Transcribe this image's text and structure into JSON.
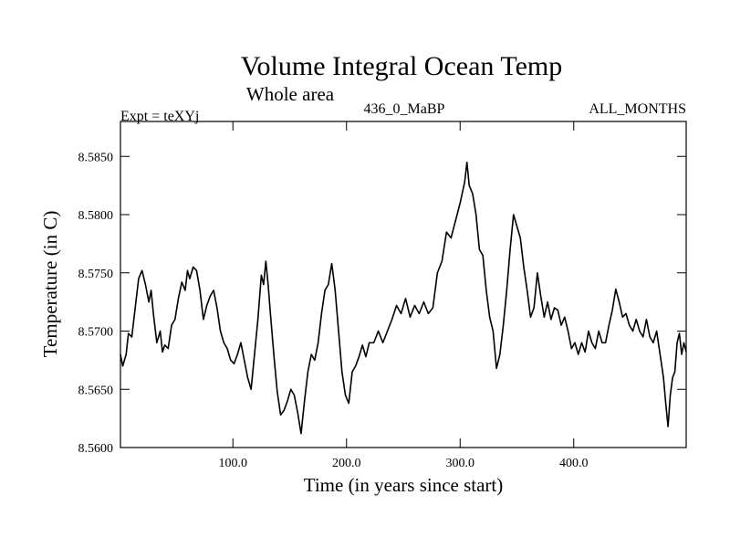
{
  "chart_data": {
    "type": "line",
    "title": "Volume Integral Ocean Temp",
    "subtitle": "Whole area",
    "header_left": "Expt = teXYj",
    "header_center": "436_0_MaBP",
    "header_right": "ALL_MONTHS",
    "xlabel": "Time (in years since start)",
    "ylabel": "Temperature (in C)",
    "xlim": [
      1,
      499
    ],
    "ylim": [
      8.56,
      8.588
    ],
    "xticks": [
      100,
      200,
      300,
      400
    ],
    "xtick_labels": [
      "100.0",
      "200.0",
      "300.0",
      "400.0"
    ],
    "yticks": [
      8.56,
      8.565,
      8.57,
      8.575,
      8.58,
      8.585
    ],
    "ytick_labels": [
      "8.5600",
      "8.5650",
      "8.5700",
      "8.5750",
      "8.5800",
      "8.5850"
    ],
    "grid": false,
    "series": [
      {
        "color": "#000000",
        "x": [
          1,
          3,
          6,
          8,
          11,
          14,
          17,
          20,
          23,
          26,
          28,
          30,
          33,
          36,
          38,
          40,
          43,
          46,
          49,
          52,
          55,
          58,
          60,
          62,
          65,
          68,
          71,
          74,
          77,
          80,
          83,
          86,
          89,
          92,
          95,
          98,
          101,
          104,
          107,
          110,
          113,
          116,
          119,
          122,
          125,
          127,
          129,
          131,
          133,
          136,
          139,
          142,
          145,
          148,
          151,
          154,
          157,
          160,
          163,
          166,
          169,
          172,
          175,
          178,
          181,
          184,
          187,
          190,
          193,
          196,
          199,
          202,
          205,
          208,
          211,
          214,
          217,
          220,
          224,
          228,
          232,
          236,
          240,
          244,
          248,
          252,
          256,
          260,
          264,
          268,
          272,
          276,
          280,
          284,
          288,
          292,
          296,
          300,
          304,
          306,
          308,
          311,
          314,
          317,
          320,
          323,
          326,
          329,
          332,
          335,
          338,
          341,
          344,
          347,
          350,
          353,
          356,
          359,
          362,
          365,
          368,
          371,
          374,
          377,
          380,
          383,
          386,
          389,
          392,
          395,
          398,
          401,
          404,
          407,
          410,
          413,
          416,
          419,
          422,
          425,
          428,
          431,
          434,
          437,
          440,
          443,
          446,
          449,
          452,
          455,
          458,
          461,
          464,
          467,
          470,
          473,
          476,
          479,
          481,
          483,
          485,
          487,
          489,
          491,
          493,
          495,
          497,
          499
        ],
        "values": [
          8.568,
          8.567,
          8.568,
          8.5698,
          8.5695,
          8.572,
          8.5745,
          8.5752,
          8.574,
          8.5725,
          8.5735,
          8.5715,
          8.569,
          8.57,
          8.5682,
          8.5688,
          8.5685,
          8.5705,
          8.571,
          8.5728,
          8.5742,
          8.5735,
          8.5752,
          8.5745,
          8.5755,
          8.5752,
          8.5735,
          8.571,
          8.5722,
          8.573,
          8.5735,
          8.572,
          8.57,
          8.569,
          8.5685,
          8.5675,
          8.5672,
          8.568,
          8.569,
          8.5675,
          8.566,
          8.565,
          8.568,
          8.571,
          8.5748,
          8.574,
          8.576,
          8.574,
          8.5715,
          8.568,
          8.5648,
          8.5628,
          8.5632,
          8.564,
          8.565,
          8.5645,
          8.563,
          8.5612,
          8.564,
          8.5665,
          8.568,
          8.5675,
          8.569,
          8.5715,
          8.5735,
          8.574,
          8.5758,
          8.5735,
          8.57,
          8.5665,
          8.5645,
          8.5638,
          8.5665,
          8.567,
          8.5678,
          8.5688,
          8.5678,
          8.569,
          8.569,
          8.57,
          8.569,
          8.57,
          8.571,
          8.5722,
          8.5715,
          8.5728,
          8.5712,
          8.5722,
          8.5715,
          8.5725,
          8.5715,
          8.572,
          8.575,
          8.576,
          8.5785,
          8.578,
          8.5795,
          8.581,
          8.5828,
          8.5845,
          8.5825,
          8.5818,
          8.58,
          8.577,
          8.5765,
          8.5735,
          8.5712,
          8.57,
          8.5668,
          8.568,
          8.5705,
          8.5735,
          8.577,
          8.58,
          8.579,
          8.578,
          8.5755,
          8.5735,
          8.5712,
          8.572,
          8.575,
          8.573,
          8.5712,
          8.5725,
          8.571,
          8.572,
          8.5718,
          8.5705,
          8.5712,
          8.57,
          8.5685,
          8.569,
          8.568,
          8.569,
          8.5682,
          8.57,
          8.569,
          8.5685,
          8.57,
          8.569,
          8.569,
          8.5705,
          8.5718,
          8.5736,
          8.5725,
          8.5712,
          8.5715,
          8.5705,
          8.57,
          8.571,
          8.57,
          8.5695,
          8.571,
          8.5695,
          8.569,
          8.57,
          8.568,
          8.566,
          8.5638,
          8.5618,
          8.5645,
          8.566,
          8.5665,
          8.569,
          8.5698,
          8.568,
          8.569,
          8.5682
        ]
      }
    ]
  }
}
